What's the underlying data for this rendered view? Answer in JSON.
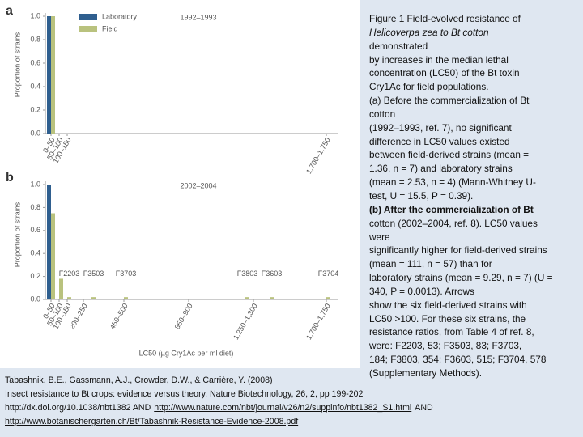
{
  "figure": {
    "y_label": "Proportion of strains",
    "x_label": "LC50 (µg Cry1Ac per ml diet)",
    "panels": [
      {
        "type": "bar",
        "label": "a",
        "period": "1992–1993",
        "ylim": [
          0,
          1
        ],
        "yticks": [
          {
            "value": 0,
            "label": "0.0"
          },
          {
            "value": 0.2,
            "label": "0.2"
          },
          {
            "value": 0.4,
            "label": "0.4"
          },
          {
            "value": 0.6,
            "label": "0.6"
          },
          {
            "value": 0.8,
            "label": "0.8"
          },
          {
            "value": 1,
            "label": "1.0"
          }
        ],
        "xlim": [
          0,
          1750
        ],
        "xticks": [
          {
            "value": 0,
            "label": "0–50"
          },
          {
            "value": 50,
            "label": "50–100"
          },
          {
            "value": 100,
            "label": "100–150"
          },
          {
            "value": 1700,
            "label": "1,700–1,750"
          }
        ],
        "legend": "top-left",
        "series": [
          {
            "name": "Laboratory",
            "color": "#2f5f8f",
            "x": [
              0
            ],
            "values": [
              1.0
            ]
          },
          {
            "name": "Field",
            "color": "#b9c27e",
            "x": [
              0
            ],
            "values": [
              1.0
            ]
          }
        ]
      },
      {
        "type": "bar",
        "label": "b",
        "period": "2002–2004",
        "ylim": [
          0,
          1
        ],
        "yticks": [
          {
            "value": 0,
            "label": "0.0"
          },
          {
            "value": 0.2,
            "label": "0.2"
          },
          {
            "value": 0.4,
            "label": "0.4"
          },
          {
            "value": 0.6,
            "label": "0.6"
          },
          {
            "value": 0.8,
            "label": "0.8"
          },
          {
            "value": 1,
            "label": "1.0"
          }
        ],
        "xlim": [
          0,
          1750
        ],
        "xticks": [
          {
            "value": 0,
            "label": "0–50"
          },
          {
            "value": 50,
            "label": "50–100"
          },
          {
            "value": 100,
            "label": "100–150"
          },
          {
            "value": 200,
            "label": "200–250"
          },
          {
            "value": 450,
            "label": "450–500"
          },
          {
            "value": 850,
            "label": "850–900"
          },
          {
            "value": 1250,
            "label": "1,250–1,300"
          },
          {
            "value": 1700,
            "label": "1,700–1,750"
          }
        ],
        "series": [
          {
            "color": "#2f5f8f",
            "x": [
              0
            ],
            "values": [
              1.0
            ]
          },
          {
            "color": "#b9c27e",
            "x": [
              0,
              50,
              100,
              250,
              450,
              1200,
              1350,
              1700
            ],
            "values": [
              0.75,
              0.18,
              0.02,
              0.02,
              0.02,
              0.02,
              0.02,
              0.02
            ],
            "labels": [
              null,
              null,
              "F2203",
              "F3503",
              "F3703",
              "F3803",
              "F3603",
              "F3704"
            ]
          }
        ]
      }
    ]
  },
  "caption": {
    "lines": [
      "Figure 1 Field-evolved resistance of",
      "Helicoverpa zea to Bt cotton",
      "demonstrated",
      "by increases in the median lethal",
      "concentration (LC50) of the Bt toxin",
      "Cry1Ac for field populations.",
      "(a) Before the commercialization of Bt",
      "cotton",
      "(1992–1993, ref. 7), no significant",
      "difference in LC50 values existed",
      "between field-derived strains (mean =",
      "1.36, n = 7) and laboratory strains",
      "(mean = 2.53, n = 4) (Mann-Whitney U-",
      "test, U = 15.5, P = 0.39).",
      "(b) After the commercialization of Bt",
      "cotton (2002–2004, ref. 8). LC50 values",
      "were",
      "significantly higher for field-derived strains",
      "(mean = 111, n = 57) than for",
      "laboratory strains (mean = 9.29, n = 7) (U =",
      "340, P = 0.0013). Arrows",
      "show the six field-derived strains with",
      "LC50 >100. For these six strains, the",
      "resistance ratios, from Table 4 of ref. 8,",
      "were: F2203, 53; F3503, 83; F3703,",
      "184; F3803, 354; F3603, 515; F3704, 578",
      "(Supplementary Methods)."
    ]
  },
  "citation": {
    "authors": "Tabashnik, B.E., Gassmann, A.J., Crowder, D.W., & Carrière, Y. (2008)",
    "source": "Insect resistance to Bt crops: evidence versus theory. Nature Biotechnology, 26, 2, pp 199-202",
    "doi": "http://dx.doi.org/10.1038/nbt1382 AND",
    "link_1": "http://www.nature.com/nbt/journal/v26/n2/suppinfo/nbt1382_S1.html",
    "and": "AND",
    "link_2": "http://www.botanischergarten.ch/Bt/Tabashnik-Resistance-Evidence-2008.pdf"
  }
}
